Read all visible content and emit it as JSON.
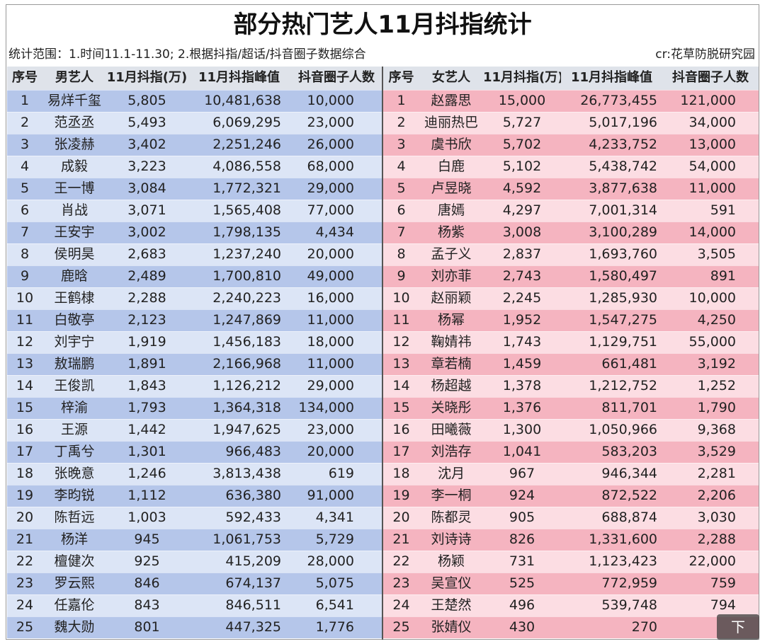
{
  "title": "部分热门艺人11月抖指统计",
  "subtitle": "统计范围：1.时间11.1-11.30; 2.根据抖指/超话/抖音圈子数据综合",
  "credit": "cr:花草防脱研究园",
  "overlay": "下",
  "tables": [
    {
      "headers": [
        "序号",
        "男艺人",
        "11月抖指(万)",
        "11月抖指峰值",
        "抖音圈子人数"
      ],
      "rows": [
        [
          "1",
          "易烊千玺",
          "5,805",
          "10,481,638",
          "10,000"
        ],
        [
          "2",
          "范丞丞",
          "5,493",
          "6,069,295",
          "23,000"
        ],
        [
          "3",
          "张凌赫",
          "3,402",
          "2,251,246",
          "26,000"
        ],
        [
          "4",
          "成毅",
          "3,223",
          "4,086,558",
          "68,000"
        ],
        [
          "5",
          "王一博",
          "3,084",
          "1,772,321",
          "29,000"
        ],
        [
          "6",
          "肖战",
          "3,071",
          "1,565,408",
          "77,000"
        ],
        [
          "7",
          "王安宇",
          "3,002",
          "1,798,135",
          "4,434"
        ],
        [
          "8",
          "侯明昊",
          "2,683",
          "1,237,240",
          "20,000"
        ],
        [
          "9",
          "鹿晗",
          "2,489",
          "1,700,810",
          "49,000"
        ],
        [
          "10",
          "王鹤棣",
          "2,288",
          "2,240,223",
          "16,000"
        ],
        [
          "11",
          "白敬亭",
          "2,123",
          "1,247,869",
          "11,000"
        ],
        [
          "12",
          "刘宇宁",
          "1,919",
          "1,456,183",
          "18,000"
        ],
        [
          "13",
          "敖瑞鹏",
          "1,891",
          "2,166,968",
          "11,000"
        ],
        [
          "14",
          "王俊凯",
          "1,843",
          "1,126,212",
          "29,000"
        ],
        [
          "15",
          "梓渝",
          "1,793",
          "1,364,318",
          "134,000"
        ],
        [
          "16",
          "王源",
          "1,442",
          "1,947,625",
          "23,000"
        ],
        [
          "17",
          "丁禹兮",
          "1,301",
          "966,483",
          "20,000"
        ],
        [
          "18",
          "张晚意",
          "1,246",
          "3,813,438",
          "619"
        ],
        [
          "19",
          "李昀锐",
          "1,112",
          "636,380",
          "91,000"
        ],
        [
          "20",
          "陈哲远",
          "1,003",
          "592,433",
          "4,341"
        ],
        [
          "21",
          "杨洋",
          "945",
          "1,061,753",
          "5,729"
        ],
        [
          "22",
          "檀健次",
          "925",
          "415,209",
          "28,000"
        ],
        [
          "23",
          "罗云熙",
          "846",
          "674,137",
          "5,075"
        ],
        [
          "24",
          "任嘉伦",
          "843",
          "846,511",
          "6,541"
        ],
        [
          "25",
          "魏大勋",
          "801",
          "447,325",
          "1,776"
        ]
      ]
    },
    {
      "headers": [
        "序号",
        "女艺人",
        "11月抖指(万)",
        "11月抖指峰值",
        "抖音圈子人数"
      ],
      "rows": [
        [
          "1",
          "赵露思",
          "15,000",
          "26,773,455",
          "121,000"
        ],
        [
          "2",
          "迪丽热巴",
          "5,727",
          "5,017,196",
          "34,000"
        ],
        [
          "3",
          "虞书欣",
          "5,702",
          "4,233,752",
          "13,000"
        ],
        [
          "4",
          "白鹿",
          "5,102",
          "5,438,742",
          "54,000"
        ],
        [
          "5",
          "卢昱晓",
          "4,592",
          "3,877,638",
          "11,000"
        ],
        [
          "6",
          "唐嫣",
          "4,297",
          "7,001,314",
          "591"
        ],
        [
          "7",
          "杨紫",
          "3,008",
          "3,100,289",
          "14,000"
        ],
        [
          "8",
          "孟子义",
          "2,837",
          "1,693,760",
          "3,505"
        ],
        [
          "9",
          "刘亦菲",
          "2,743",
          "1,580,497",
          "891"
        ],
        [
          "10",
          "赵丽颖",
          "2,245",
          "1,285,930",
          "10,000"
        ],
        [
          "11",
          "杨幂",
          "1,952",
          "1,547,275",
          "4,250"
        ],
        [
          "12",
          "鞠婧祎",
          "1,743",
          "1,129,751",
          "55,000"
        ],
        [
          "13",
          "章若楠",
          "1,459",
          "661,481",
          "3,192"
        ],
        [
          "14",
          "杨超越",
          "1,378",
          "1,212,752",
          "1,252"
        ],
        [
          "15",
          "关晓彤",
          "1,376",
          "811,701",
          "1,790"
        ],
        [
          "16",
          "田曦薇",
          "1,300",
          "1,050,966",
          "9,368"
        ],
        [
          "17",
          "刘浩存",
          "1,041",
          "583,203",
          "3,529"
        ],
        [
          "18",
          "沈月",
          "967",
          "946,344",
          "2,281"
        ],
        [
          "19",
          "李一桐",
          "924",
          "872,522",
          "2,206"
        ],
        [
          "20",
          "陈都灵",
          "905",
          "688,874",
          "3,030"
        ],
        [
          "21",
          "刘诗诗",
          "826",
          "1,331,600",
          "2,288"
        ],
        [
          "22",
          "杨颖",
          "731",
          "1,123,423",
          "22,000"
        ],
        [
          "23",
          "吴宣仪",
          "525",
          "772,959",
          "759"
        ],
        [
          "24",
          "王楚然",
          "496",
          "539,748",
          "794"
        ],
        [
          "25",
          "张婧仪",
          "430",
          "270",
          null
        ]
      ]
    }
  ]
}
